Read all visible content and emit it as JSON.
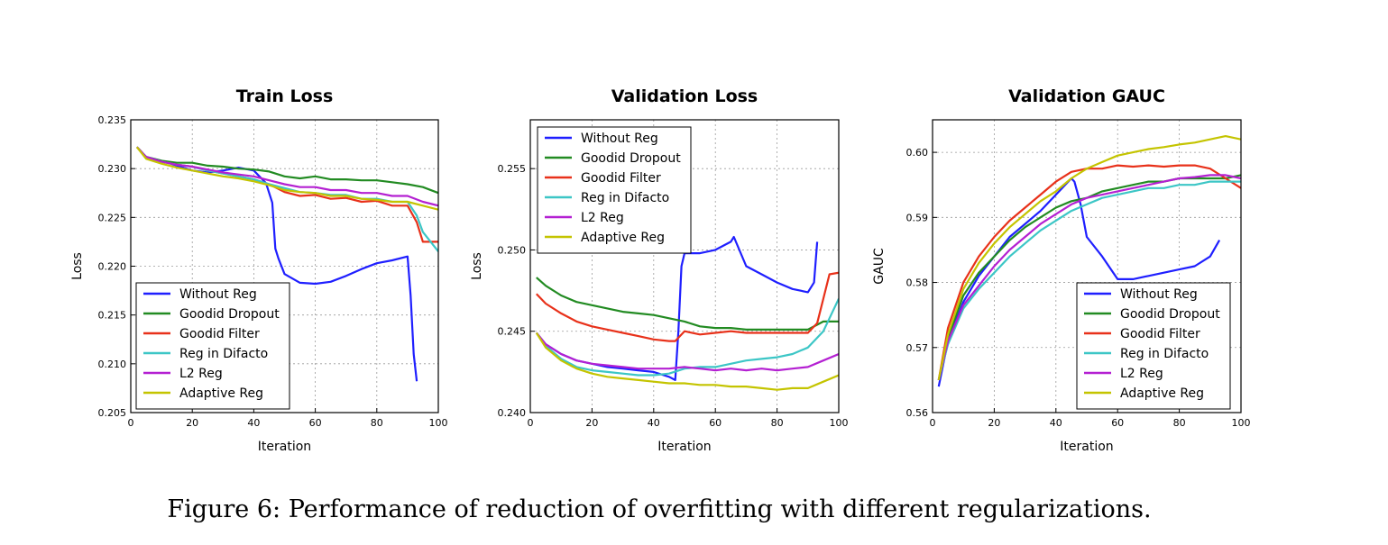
{
  "caption": "Figure 6: Performance of reduction of overfitting with different regularizations.",
  "colors": {
    "Without Reg": "#1f1fff",
    "Goodid Dropout": "#228b22",
    "Goodid Filter": "#e8311a",
    "Reg in Difacto": "#3cc6c6",
    "L2 Reg": "#b420d2",
    "Adaptive Reg": "#c4c400"
  },
  "chart_data": [
    {
      "type": "line",
      "title": "Train Loss",
      "xlabel": "Iteration",
      "ylabel": "Loss",
      "xlim": [
        0,
        100
      ],
      "ylim": [
        0.205,
        0.235
      ],
      "xticks": [
        "0",
        "20",
        "40",
        "60",
        "80",
        "100"
      ],
      "yticks": [
        "0.205",
        "0.210",
        "0.215",
        "0.220",
        "0.225",
        "0.230",
        "0.235"
      ],
      "grid": true,
      "legend_position": "lower-left",
      "series": [
        {
          "name": "Without Reg",
          "x": [
            2,
            5,
            10,
            15,
            20,
            25,
            30,
            35,
            40,
            44,
            46,
            47,
            48,
            50,
            55,
            60,
            65,
            70,
            75,
            80,
            85,
            90,
            91,
            92,
            93
          ],
          "y": [
            0.2322,
            0.2312,
            0.2308,
            0.2303,
            0.2298,
            0.2296,
            0.2298,
            0.2301,
            0.2298,
            0.2285,
            0.2265,
            0.2218,
            0.2208,
            0.2192,
            0.2183,
            0.2182,
            0.2184,
            0.219,
            0.2197,
            0.2203,
            0.2206,
            0.221,
            0.217,
            0.211,
            0.2082
          ]
        },
        {
          "name": "Goodid Dropout",
          "x": [
            2,
            5,
            10,
            15,
            20,
            25,
            30,
            35,
            40,
            45,
            50,
            55,
            60,
            65,
            70,
            75,
            80,
            85,
            90,
            95,
            100
          ],
          "y": [
            0.2322,
            0.2312,
            0.2308,
            0.2306,
            0.2306,
            0.2303,
            0.2302,
            0.23,
            0.2299,
            0.2297,
            0.2292,
            0.229,
            0.2292,
            0.2289,
            0.2289,
            0.2288,
            0.2288,
            0.2286,
            0.2284,
            0.2281,
            0.2275
          ]
        },
        {
          "name": "Goodid Filter",
          "x": [
            2,
            5,
            10,
            15,
            20,
            25,
            30,
            35,
            40,
            45,
            50,
            55,
            60,
            65,
            70,
            75,
            80,
            85,
            90,
            93,
            95,
            100
          ],
          "y": [
            0.2322,
            0.2312,
            0.2307,
            0.2304,
            0.2302,
            0.2298,
            0.2295,
            0.2292,
            0.2289,
            0.2284,
            0.2276,
            0.2272,
            0.2273,
            0.2269,
            0.227,
            0.2266,
            0.2267,
            0.2262,
            0.2262,
            0.2245,
            0.2225,
            0.2225
          ]
        },
        {
          "name": "Reg in Difacto",
          "x": [
            2,
            5,
            10,
            15,
            20,
            25,
            30,
            35,
            40,
            45,
            50,
            55,
            60,
            65,
            70,
            75,
            80,
            85,
            90,
            93,
            95,
            100
          ],
          "y": [
            0.2322,
            0.2312,
            0.2307,
            0.2304,
            0.2302,
            0.2298,
            0.2295,
            0.2292,
            0.2289,
            0.2284,
            0.228,
            0.2276,
            0.2275,
            0.2273,
            0.2273,
            0.2269,
            0.2269,
            0.2266,
            0.2266,
            0.2252,
            0.2235,
            0.2215
          ]
        },
        {
          "name": "L2 Reg",
          "x": [
            2,
            5,
            10,
            15,
            20,
            25,
            30,
            35,
            40,
            45,
            50,
            55,
            60,
            65,
            70,
            75,
            80,
            85,
            90,
            95,
            100
          ],
          "y": [
            0.2322,
            0.2312,
            0.2307,
            0.2304,
            0.2302,
            0.2299,
            0.2296,
            0.2294,
            0.2292,
            0.2288,
            0.2284,
            0.2281,
            0.2281,
            0.2278,
            0.2278,
            0.2275,
            0.2275,
            0.2272,
            0.2272,
            0.2266,
            0.2262
          ]
        },
        {
          "name": "Adaptive Reg",
          "x": [
            2,
            5,
            10,
            15,
            20,
            25,
            30,
            35,
            40,
            45,
            50,
            55,
            60,
            65,
            70,
            75,
            80,
            85,
            90,
            95,
            100
          ],
          "y": [
            0.2322,
            0.231,
            0.2305,
            0.2301,
            0.2298,
            0.2295,
            0.2292,
            0.229,
            0.2287,
            0.2283,
            0.2278,
            0.2276,
            0.2275,
            0.2272,
            0.2272,
            0.2269,
            0.2268,
            0.2266,
            0.2266,
            0.2262,
            0.2258
          ]
        }
      ]
    },
    {
      "type": "line",
      "title": "Validation Loss",
      "xlabel": "Iteration",
      "ylabel": "Loss",
      "xlim": [
        0,
        100
      ],
      "ylim": [
        0.24,
        0.258
      ],
      "xticks": [
        "0",
        "20",
        "40",
        "60",
        "80",
        "100"
      ],
      "yticks": [
        "0.240",
        "0.245",
        "0.250",
        "0.255"
      ],
      "grid": true,
      "legend_position": "upper-left",
      "series": [
        {
          "name": "Without Reg",
          "x": [
            2,
            5,
            10,
            15,
            20,
            25,
            30,
            35,
            40,
            45,
            47,
            48,
            49,
            50,
            55,
            60,
            65,
            66,
            70,
            75,
            80,
            85,
            90,
            92,
            93
          ],
          "y": [
            0.2449,
            0.2442,
            0.2436,
            0.2432,
            0.243,
            0.2428,
            0.2427,
            0.2426,
            0.2425,
            0.2422,
            0.242,
            0.245,
            0.249,
            0.2498,
            0.2498,
            0.25,
            0.2505,
            0.2508,
            0.249,
            0.2485,
            0.248,
            0.2476,
            0.2474,
            0.248,
            0.2505
          ]
        },
        {
          "name": "Goodid Dropout",
          "x": [
            2,
            5,
            10,
            15,
            20,
            25,
            30,
            35,
            40,
            45,
            50,
            55,
            60,
            65,
            70,
            75,
            80,
            85,
            90,
            95,
            100
          ],
          "y": [
            0.2483,
            0.2478,
            0.2472,
            0.2468,
            0.2466,
            0.2464,
            0.2462,
            0.2461,
            0.246,
            0.2458,
            0.2456,
            0.2453,
            0.2452,
            0.2452,
            0.2451,
            0.2451,
            0.2451,
            0.2451,
            0.2451,
            0.2456,
            0.2456
          ]
        },
        {
          "name": "Goodid Filter",
          "x": [
            2,
            5,
            10,
            15,
            20,
            25,
            30,
            35,
            40,
            45,
            47,
            50,
            55,
            60,
            65,
            70,
            75,
            80,
            85,
            90,
            93,
            95,
            97,
            100
          ],
          "y": [
            0.2473,
            0.2467,
            0.2461,
            0.2456,
            0.2453,
            0.2451,
            0.2449,
            0.2447,
            0.2445,
            0.2444,
            0.2444,
            0.245,
            0.2448,
            0.2449,
            0.245,
            0.2449,
            0.2449,
            0.2449,
            0.2449,
            0.2449,
            0.2455,
            0.247,
            0.2485,
            0.2486
          ]
        },
        {
          "name": "Reg in Difacto",
          "x": [
            2,
            5,
            10,
            15,
            20,
            25,
            30,
            35,
            40,
            45,
            50,
            55,
            60,
            65,
            70,
            75,
            80,
            85,
            90,
            95,
            100
          ],
          "y": [
            0.2449,
            0.2441,
            0.2433,
            0.2428,
            0.2426,
            0.2425,
            0.2424,
            0.2423,
            0.2423,
            0.2424,
            0.2427,
            0.2428,
            0.2428,
            0.243,
            0.2432,
            0.2433,
            0.2434,
            0.2436,
            0.244,
            0.245,
            0.247
          ]
        },
        {
          "name": "L2 Reg",
          "x": [
            2,
            5,
            10,
            15,
            20,
            25,
            30,
            35,
            40,
            45,
            50,
            55,
            60,
            65,
            70,
            75,
            80,
            85,
            90,
            95,
            100
          ],
          "y": [
            0.2449,
            0.2442,
            0.2436,
            0.2432,
            0.243,
            0.2429,
            0.2428,
            0.2427,
            0.2427,
            0.2427,
            0.2428,
            0.2427,
            0.2426,
            0.2427,
            0.2426,
            0.2427,
            0.2426,
            0.2427,
            0.2428,
            0.2432,
            0.2436
          ]
        },
        {
          "name": "Adaptive Reg",
          "x": [
            2,
            5,
            10,
            15,
            20,
            25,
            30,
            35,
            40,
            45,
            50,
            55,
            60,
            65,
            70,
            75,
            80,
            85,
            90,
            95,
            100
          ],
          "y": [
            0.2449,
            0.244,
            0.2432,
            0.2427,
            0.2424,
            0.2422,
            0.2421,
            0.242,
            0.2419,
            0.2418,
            0.2418,
            0.2417,
            0.2417,
            0.2416,
            0.2416,
            0.2415,
            0.2414,
            0.2415,
            0.2415,
            0.2419,
            0.2423
          ]
        }
      ]
    },
    {
      "type": "line",
      "title": "Validation GAUC",
      "xlabel": "Iteration",
      "ylabel": "GAUC",
      "xlim": [
        0,
        100
      ],
      "ylim": [
        0.56,
        0.605
      ],
      "xticks": [
        "0",
        "20",
        "40",
        "60",
        "80",
        "100"
      ],
      "yticks": [
        "0.56",
        "0.57",
        "0.58",
        "0.59",
        "0.60"
      ],
      "grid": true,
      "legend_position": "lower-right",
      "series": [
        {
          "name": "Without Reg",
          "x": [
            2,
            5,
            10,
            15,
            20,
            25,
            30,
            35,
            40,
            45,
            46,
            48,
            50,
            55,
            60,
            65,
            70,
            75,
            80,
            85,
            90,
            93
          ],
          "y": [
            0.564,
            0.571,
            0.577,
            0.581,
            0.584,
            0.587,
            0.589,
            0.591,
            0.5935,
            0.596,
            0.5955,
            0.592,
            0.587,
            0.584,
            0.5805,
            0.5805,
            0.581,
            0.5815,
            0.582,
            0.5825,
            0.584,
            0.5865
          ]
        },
        {
          "name": "Goodid Dropout",
          "x": [
            2,
            5,
            10,
            15,
            20,
            25,
            30,
            35,
            40,
            45,
            50,
            55,
            60,
            65,
            70,
            75,
            80,
            85,
            90,
            95,
            100
          ],
          "y": [
            0.565,
            0.5715,
            0.578,
            0.5815,
            0.584,
            0.5865,
            0.5885,
            0.59,
            0.5915,
            0.5925,
            0.593,
            0.594,
            0.5945,
            0.595,
            0.5955,
            0.5955,
            0.596,
            0.596,
            0.596,
            0.596,
            0.5965
          ]
        },
        {
          "name": "Goodid Filter",
          "x": [
            2,
            5,
            10,
            15,
            20,
            25,
            30,
            35,
            40,
            45,
            50,
            55,
            60,
            65,
            70,
            75,
            80,
            85,
            90,
            95,
            100
          ],
          "y": [
            0.565,
            0.573,
            0.58,
            0.584,
            0.587,
            0.5895,
            0.5915,
            0.5935,
            0.5955,
            0.597,
            0.5975,
            0.5975,
            0.598,
            0.5978,
            0.598,
            0.5978,
            0.598,
            0.598,
            0.5975,
            0.596,
            0.5945
          ]
        },
        {
          "name": "Reg in Difacto",
          "x": [
            2,
            5,
            10,
            15,
            20,
            25,
            30,
            35,
            40,
            45,
            50,
            55,
            60,
            65,
            70,
            75,
            80,
            85,
            90,
            95,
            100
          ],
          "y": [
            0.565,
            0.5705,
            0.576,
            0.579,
            0.5815,
            0.584,
            0.586,
            0.588,
            0.5895,
            0.591,
            0.592,
            0.593,
            0.5935,
            0.594,
            0.5945,
            0.5945,
            0.595,
            0.595,
            0.5955,
            0.5955,
            0.5955
          ]
        },
        {
          "name": "L2 Reg",
          "x": [
            2,
            5,
            10,
            15,
            20,
            25,
            30,
            35,
            40,
            45,
            50,
            55,
            60,
            65,
            70,
            75,
            80,
            85,
            90,
            95,
            100
          ],
          "y": [
            0.565,
            0.571,
            0.5765,
            0.5795,
            0.5825,
            0.585,
            0.587,
            0.589,
            0.5905,
            0.592,
            0.593,
            0.5935,
            0.594,
            0.5945,
            0.595,
            0.5955,
            0.596,
            0.5962,
            0.5965,
            0.5965,
            0.596
          ]
        },
        {
          "name": "Adaptive Reg",
          "x": [
            2,
            5,
            10,
            15,
            20,
            25,
            30,
            35,
            40,
            45,
            50,
            55,
            60,
            65,
            70,
            75,
            80,
            85,
            90,
            95,
            100
          ],
          "y": [
            0.565,
            0.572,
            0.579,
            0.583,
            0.586,
            0.5885,
            0.5905,
            0.5925,
            0.594,
            0.596,
            0.5975,
            0.5985,
            0.5995,
            0.6,
            0.6005,
            0.6008,
            0.6012,
            0.6015,
            0.602,
            0.6025,
            0.602
          ]
        }
      ]
    }
  ]
}
